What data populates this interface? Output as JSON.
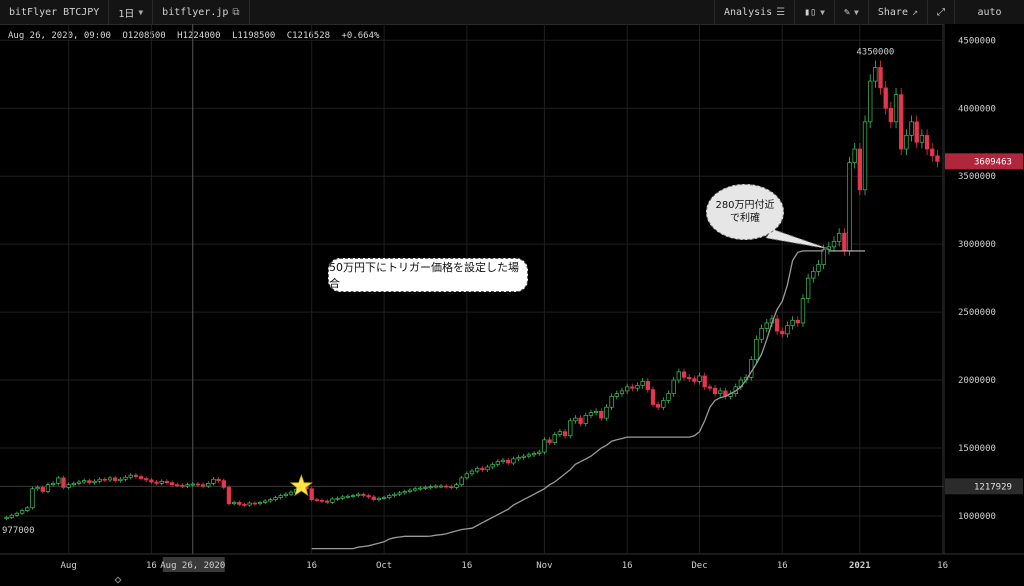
{
  "toolbar": {
    "symbol": "bitFlyer BTCJPY",
    "interval": "1日",
    "exchange": "bitflyer.jp",
    "analysis": "Analysis",
    "share": "Share",
    "scale_mode": "auto"
  },
  "ohlc": {
    "date": "Aug 26, 2020, 09:00",
    "open": "O1208500",
    "high": "H1224000",
    "low": "L1198500",
    "close": "C1216528",
    "change": "+0.664%"
  },
  "annotations": {
    "left_box": "50万円下にトリガー価格を設定した場合",
    "bubble_line1": "280万円付近",
    "bubble_line2": "で利確",
    "high_label": "4350000",
    "low_label": "977000"
  },
  "price_markers": {
    "current": "3609463",
    "trigger_line": "1217929"
  },
  "colors": {
    "up": "#3ec25b",
    "down": "#e5354f",
    "trailing": "#9a9a9a",
    "star": "#ffe54a"
  },
  "chart_data": {
    "type": "candlestick",
    "x_tick_labels": [
      "Aug",
      "16",
      "Aug 26, 2020",
      "16",
      "Oct",
      "16",
      "Nov",
      "16",
      "Dec",
      "16",
      "2021",
      "16"
    ],
    "y_tick_labels": [
      "4500000",
      "4000000",
      "3500000",
      "3000000",
      "2500000",
      "2000000",
      "1500000",
      "1000000"
    ],
    "y_ticks": [
      4500000,
      4000000,
      3500000,
      3000000,
      2500000,
      2000000,
      1500000,
      1000000
    ],
    "ylim": [
      720000,
      4620000
    ],
    "closes": [
      990000,
      1005000,
      1020000,
      1040000,
      1060000,
      1200000,
      1210000,
      1180000,
      1230000,
      1240000,
      1280000,
      1210000,
      1230000,
      1240000,
      1250000,
      1260000,
      1245000,
      1255000,
      1270000,
      1265000,
      1280000,
      1260000,
      1270000,
      1285000,
      1300000,
      1290000,
      1275000,
      1265000,
      1250000,
      1240000,
      1255000,
      1245000,
      1230000,
      1225000,
      1220000,
      1230000,
      1235000,
      1230000,
      1220000,
      1240000,
      1270000,
      1260000,
      1210000,
      1090000,
      1100000,
      1085000,
      1080000,
      1095000,
      1090000,
      1100000,
      1110000,
      1120000,
      1135000,
      1150000,
      1160000,
      1175000,
      1195000,
      1210000,
      1200000,
      1120000,
      1115000,
      1110000,
      1100000,
      1125000,
      1130000,
      1140000,
      1145000,
      1150000,
      1160000,
      1150000,
      1140000,
      1120000,
      1130000,
      1135000,
      1150000,
      1160000,
      1170000,
      1180000,
      1190000,
      1200000,
      1205000,
      1210000,
      1215000,
      1220000,
      1220000,
      1215000,
      1210000,
      1230000,
      1280000,
      1310000,
      1330000,
      1350000,
      1340000,
      1360000,
      1380000,
      1400000,
      1410000,
      1390000,
      1420000,
      1430000,
      1440000,
      1450000,
      1460000,
      1470000,
      1560000,
      1540000,
      1600000,
      1620000,
      1590000,
      1700000,
      1720000,
      1680000,
      1740000,
      1760000,
      1770000,
      1720000,
      1800000,
      1880000,
      1900000,
      1920000,
      1950000,
      1940000,
      1960000,
      1990000,
      1930000,
      1820000,
      1800000,
      1850000,
      1900000,
      2000000,
      2060000,
      2020000,
      2010000,
      1990000,
      2030000,
      1950000,
      1940000,
      1900000,
      1920000,
      1880000,
      1900000,
      1950000,
      2000000,
      2020000,
      2150000,
      2300000,
      2380000,
      2420000,
      2450000,
      2360000,
      2340000,
      2400000,
      2440000,
      2420000,
      2600000,
      2750000,
      2800000,
      2850000,
      2960000,
      2980000,
      3020000,
      3080000,
      2950000,
      3600000,
      3700000,
      3400000,
      3900000,
      4200000,
      4300000,
      4150000,
      4000000,
      3900000,
      4100000,
      3700000,
      3800000,
      3900000,
      3750000,
      3800000,
      3700000,
      3650000,
      3609463
    ],
    "trailing_stop": [
      null,
      null,
      null,
      null,
      null,
      null,
      null,
      null,
      null,
      null,
      null,
      null,
      null,
      null,
      null,
      null,
      null,
      null,
      null,
      null,
      null,
      null,
      null,
      null,
      null,
      null,
      null,
      null,
      null,
      null,
      null,
      null,
      null,
      null,
      null,
      null,
      null,
      null,
      null,
      null,
      null,
      null,
      null,
      null,
      null,
      null,
      null,
      null,
      null,
      null,
      null,
      null,
      null,
      null,
      null,
      null,
      null,
      null,
      null,
      760000,
      760000,
      760000,
      760000,
      760000,
      760000,
      760000,
      760000,
      760000,
      770000,
      775000,
      780000,
      790000,
      800000,
      810000,
      830000,
      840000,
      845000,
      850000,
      850000,
      850000,
      850000,
      850000,
      852000,
      858000,
      862000,
      868000,
      880000,
      890000,
      900000,
      905000,
      910000,
      930000,
      950000,
      970000,
      990000,
      1010000,
      1030000,
      1050000,
      1080000,
      1100000,
      1120000,
      1140000,
      1160000,
      1180000,
      1200000,
      1230000,
      1250000,
      1280000,
      1310000,
      1340000,
      1380000,
      1400000,
      1420000,
      1440000,
      1470000,
      1500000,
      1520000,
      1550000,
      1560000,
      1570000,
      1580000,
      1580000,
      1580000,
      1580000,
      1580000,
      1580000,
      1580000,
      1580000,
      1580000,
      1580000,
      1580000,
      1580000,
      1580000,
      1590000,
      1620000,
      1700000,
      1800000,
      1850000,
      1870000,
      1880000,
      1900000,
      1920000,
      1950000,
      2000000,
      2060000,
      2120000,
      2190000,
      2300000,
      2420000,
      2520000,
      2580000,
      2700000,
      2880000,
      2940000,
      2950000,
      2950000,
      2950000,
      2950000,
      2950000,
      null,
      null,
      null,
      null,
      null,
      null,
      null,
      null,
      null,
      null,
      null,
      null,
      null,
      null,
      null,
      null,
      null
    ],
    "trigger_level": 1217929,
    "take_profit_level": 2950000,
    "marker_index": 57
  }
}
